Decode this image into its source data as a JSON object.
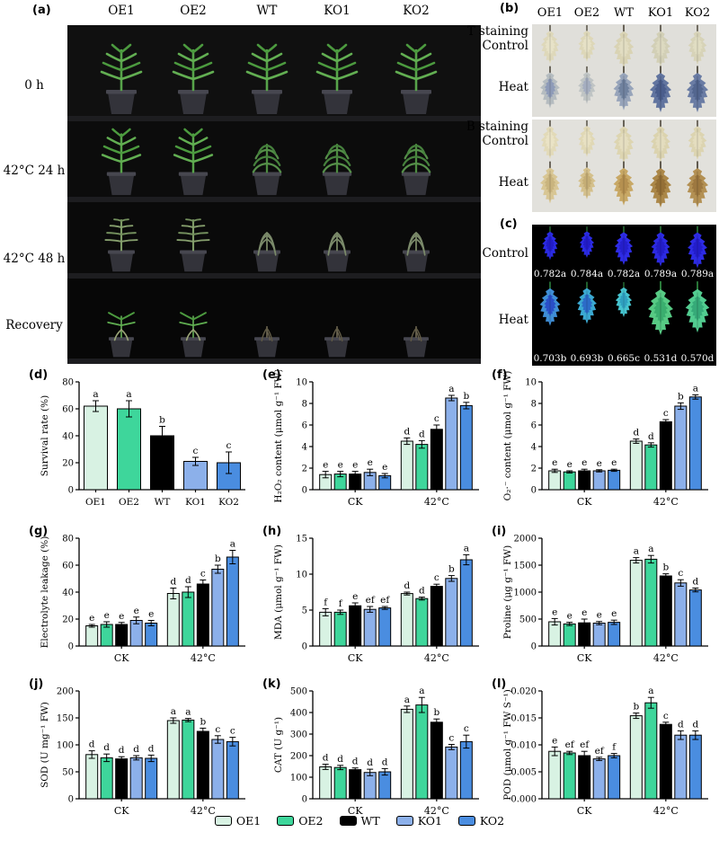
{
  "panel_a": {
    "tag": "(a)",
    "genotypes": [
      "OE1",
      "OE2",
      "WT",
      "KO1",
      "KO2"
    ],
    "rows": [
      {
        "label": "0 h",
        "states": [
          "healthy",
          "healthy",
          "healthy",
          "healthy",
          "healthy"
        ]
      },
      {
        "label": "42°C 24 h",
        "states": [
          "healthy",
          "healthy",
          "wilted",
          "wilted",
          "wilted"
        ]
      },
      {
        "label": "42°C 48 h",
        "states": [
          "stressed",
          "stressed",
          "collapsed",
          "collapsed",
          "collapsed"
        ]
      },
      {
        "label": "Recovery",
        "states": [
          "recovering",
          "recovering",
          "dead",
          "dead",
          "dead"
        ]
      }
    ]
  },
  "panel_b": {
    "tag": "(b)",
    "genotypes": [
      "OE1",
      "OE2",
      "WT",
      "KO1",
      "KO2"
    ],
    "blocks": [
      {
        "title": "NBT staining",
        "rows": [
          {
            "label": "Control",
            "leaf_outer": [
              "#ded8ba",
              "#ddd7b8",
              "#d9d3b4",
              "#d2cfb6",
              "#d7d3b8"
            ],
            "leaf_inner": [
              "#e7e2c8",
              "#e6e1c6",
              "#e2ddc2",
              "#dcd9c0",
              "#e0ddc2"
            ]
          },
          {
            "label": "Heat",
            "leaf_outer": [
              "#b5bcc0",
              "#bfc4c4",
              "#97a4ba",
              "#61749f",
              "#6a7ca4"
            ],
            "leaf_inner": [
              "#8e9bb8",
              "#a5aec0",
              "#70829f",
              "#4a5d8c",
              "#53668f"
            ]
          }
        ]
      },
      {
        "title": "DAB staining",
        "rows": [
          {
            "label": "Control",
            "leaf_outer": [
              "#e2dab8",
              "#e0d8b5",
              "#ddd5b1",
              "#dbd3af",
              "#dcd4b1"
            ],
            "leaf_inner": [
              "#eae3c6",
              "#e8e1c3",
              "#e5dec0",
              "#e3dcbe",
              "#e4ddbf"
            ]
          },
          {
            "label": "Heat",
            "leaf_outer": [
              "#d8c694",
              "#d4c08c",
              "#c8a865",
              "#ab8748",
              "#b39053"
            ],
            "leaf_inner": [
              "#c9b47e",
              "#c5ae76",
              "#b59050",
              "#946f36",
              "#9d7840"
            ]
          }
        ]
      }
    ]
  },
  "panel_c": {
    "tag": "(c)",
    "rows": [
      {
        "label": "Control",
        "values": [
          "0.782a",
          "0.784a",
          "0.782a",
          "0.789a",
          "0.789a"
        ],
        "leaf_outer": [
          "#2b2be4",
          "#2b2be4",
          "#2e2ce6",
          "#2c2ae2",
          "#2d2be4"
        ],
        "leaf_inner": [
          "#221cc8",
          "#221cc8",
          "#241ecc",
          "#231dc8",
          "#231dca"
        ]
      },
      {
        "label": "Heat",
        "values": [
          "0.703b",
          "0.693b",
          "0.665c",
          "0.531d",
          "0.570d"
        ],
        "leaf_outer": [
          "#3f8ed6",
          "#3ba9d2",
          "#46c4cf",
          "#57ca84",
          "#52cc90"
        ],
        "leaf_inner": [
          "#2a4fc8",
          "#2c6cc8",
          "#2fa0c0",
          "#3aae6e",
          "#36aa78"
        ]
      }
    ]
  },
  "series": [
    "OE1",
    "OE2",
    "WT",
    "KO1",
    "KO2"
  ],
  "series_colors": [
    "#d8f2e3",
    "#3ed69b",
    "#000000",
    "#8cb0ea",
    "#4a8de0"
  ],
  "legend": [
    {
      "label": "OE1",
      "color": "#d8f2e3"
    },
    {
      "label": "OE2",
      "color": "#3ed69b"
    },
    {
      "label": "WT",
      "color": "#000000"
    },
    {
      "label": "KO1",
      "color": "#8cb0ea"
    },
    {
      "label": "KO2",
      "color": "#4a8de0"
    }
  ],
  "chart_data": [
    {
      "tag": "(d)",
      "type": "bar",
      "ylabel": "Survival rate (%)",
      "ylim": [
        0,
        80
      ],
      "yticks": [
        0,
        20,
        40,
        60,
        80
      ],
      "categories": [
        "OE1",
        "OE2",
        "WT",
        "KO1",
        "KO2"
      ],
      "values": [
        62,
        60,
        40,
        21,
        20
      ],
      "errors": [
        4,
        6,
        7,
        3,
        8
      ],
      "letters": [
        "a",
        "a",
        "b",
        "c",
        "c"
      ]
    },
    {
      "tag": "(e)",
      "type": "bar",
      "ylabel": "H₂O₂ content (μmol g⁻¹ FW)",
      "ylim": [
        0,
        10
      ],
      "yticks": [
        0,
        2,
        4,
        6,
        8,
        10
      ],
      "groups": [
        "CK",
        "42°C"
      ],
      "values": [
        [
          1.4,
          1.45,
          1.45,
          1.6,
          1.3
        ],
        [
          4.5,
          4.2,
          5.6,
          8.5,
          7.8
        ]
      ],
      "errors": [
        [
          0.3,
          0.25,
          0.25,
          0.3,
          0.2
        ],
        [
          0.3,
          0.35,
          0.4,
          0.25,
          0.3
        ]
      ],
      "letters": [
        [
          "e",
          "e",
          "e",
          "e",
          "e"
        ],
        [
          "d",
          "d",
          "c",
          "a",
          "b"
        ]
      ]
    },
    {
      "tag": "(f)",
      "type": "bar",
      "ylabel": "O₂·⁻ content (μmol g⁻¹ FW)",
      "ylim": [
        0,
        10
      ],
      "yticks": [
        0,
        2,
        4,
        6,
        8,
        10
      ],
      "groups": [
        "CK",
        "42°C"
      ],
      "values": [
        [
          1.75,
          1.65,
          1.75,
          1.75,
          1.8
        ],
        [
          4.5,
          4.15,
          6.3,
          7.75,
          8.6
        ]
      ],
      "errors": [
        [
          0.15,
          0.1,
          0.15,
          0.1,
          0.1
        ],
        [
          0.2,
          0.2,
          0.2,
          0.3,
          0.2
        ]
      ],
      "letters": [
        [
          "e",
          "e",
          "e",
          "e",
          "e"
        ],
        [
          "d",
          "d",
          "c",
          "b",
          "a"
        ]
      ]
    },
    {
      "tag": "(g)",
      "type": "bar",
      "ylabel": "Electrolyte leakage (%)",
      "ylim": [
        0,
        80
      ],
      "yticks": [
        0,
        20,
        40,
        60,
        80
      ],
      "groups": [
        "CK",
        "42°C"
      ],
      "values": [
        [
          15,
          16,
          16,
          19,
          17
        ],
        [
          39,
          40,
          46,
          57,
          66
        ]
      ],
      "errors": [
        [
          1,
          2,
          1.5,
          2.5,
          2
        ],
        [
          4,
          4,
          3,
          3,
          5
        ]
      ],
      "letters": [
        [
          "e",
          "e",
          "e",
          "e",
          "e"
        ],
        [
          "d",
          "d",
          "c",
          "b",
          "a"
        ]
      ]
    },
    {
      "tag": "(h)",
      "type": "bar",
      "ylabel": "MDA (μmol g⁻¹ FW)",
      "ylim": [
        0,
        15
      ],
      "yticks": [
        0,
        5,
        10,
        15
      ],
      "groups": [
        "CK",
        "42°C"
      ],
      "values": [
        [
          4.7,
          4.7,
          5.6,
          5.1,
          5.3
        ],
        [
          7.3,
          6.6,
          8.3,
          9.4,
          12
        ]
      ],
      "errors": [
        [
          0.5,
          0.3,
          0.4,
          0.4,
          0.2
        ],
        [
          0.2,
          0.2,
          0.3,
          0.4,
          0.7
        ]
      ],
      "letters": [
        [
          "f",
          "f",
          "e",
          "ef",
          "ef"
        ],
        [
          "d",
          "d",
          "c",
          "b",
          "a"
        ]
      ]
    },
    {
      "tag": "(i)",
      "type": "bar",
      "ylabel": "Proline (μg g⁻¹ FW)",
      "ylim": [
        0,
        2000
      ],
      "yticks": [
        0,
        500,
        1000,
        1500,
        2000
      ],
      "groups": [
        "CK",
        "42°C"
      ],
      "values": [
        [
          450,
          410,
          430,
          425,
          440
        ],
        [
          1590,
          1610,
          1300,
          1170,
          1040
        ]
      ],
      "errors": [
        [
          60,
          30,
          70,
          30,
          40
        ],
        [
          50,
          70,
          40,
          60,
          35
        ]
      ],
      "letters": [
        [
          "e",
          "e",
          "e",
          "e",
          "e"
        ],
        [
          "a",
          "a",
          "b",
          "c",
          "d"
        ]
      ]
    },
    {
      "tag": "(j)",
      "type": "bar",
      "ylabel": "SOD (U mg⁻¹ FW)",
      "ylim": [
        0,
        200
      ],
      "yticks": [
        0,
        50,
        100,
        150,
        200
      ],
      "groups": [
        "CK",
        "42°C"
      ],
      "values": [
        [
          82,
          76,
          74,
          76,
          75
        ],
        [
          145,
          146,
          125,
          110,
          106
        ]
      ],
      "errors": [
        [
          7,
          7,
          4,
          4,
          6
        ],
        [
          5,
          3,
          6,
          7,
          8
        ]
      ],
      "letters": [
        [
          "d",
          "d",
          "d",
          "d",
          "d"
        ],
        [
          "a",
          "a",
          "b",
          "c",
          "c"
        ]
      ]
    },
    {
      "tag": "(k)",
      "type": "bar",
      "ylabel": "CAT (U g⁻¹)",
      "ylim": [
        0,
        500
      ],
      "yticks": [
        0,
        100,
        200,
        300,
        400,
        500
      ],
      "groups": [
        "CK",
        "42°C"
      ],
      "values": [
        [
          148,
          145,
          135,
          122,
          125
        ],
        [
          415,
          435,
          355,
          240,
          265
        ]
      ],
      "errors": [
        [
          12,
          10,
          8,
          15,
          15
        ],
        [
          15,
          35,
          15,
          12,
          30
        ]
      ],
      "letters": [
        [
          "d",
          "d",
          "d",
          "d",
          "d"
        ],
        [
          "a",
          "a",
          "b",
          "c",
          "c"
        ]
      ]
    },
    {
      "tag": "(l)",
      "type": "bar",
      "ylabel": "POD (μmol g⁻¹ FW S⁻¹)",
      "ylim": [
        0,
        0.02
      ],
      "yticks": [
        0,
        0.005,
        0.01,
        0.015,
        0.02
      ],
      "ytick_labels": [
        "0.000",
        "0.005",
        "0.010",
        "0.015",
        "0.020"
      ],
      "groups": [
        "CK",
        "42°C"
      ],
      "values": [
        [
          0.0088,
          0.0085,
          0.008,
          0.0074,
          0.008
        ],
        [
          0.0154,
          0.0178,
          0.0138,
          0.0118,
          0.0118
        ]
      ],
      "errors": [
        [
          0.0008,
          0.0003,
          0.0008,
          0.0003,
          0.0004
        ],
        [
          0.0005,
          0.001,
          0.0004,
          0.0008,
          0.0008
        ]
      ],
      "letters": [
        [
          "e",
          "ef",
          "ef",
          "ef",
          "f"
        ],
        [
          "b",
          "a",
          "c",
          "d",
          "d"
        ]
      ]
    }
  ]
}
